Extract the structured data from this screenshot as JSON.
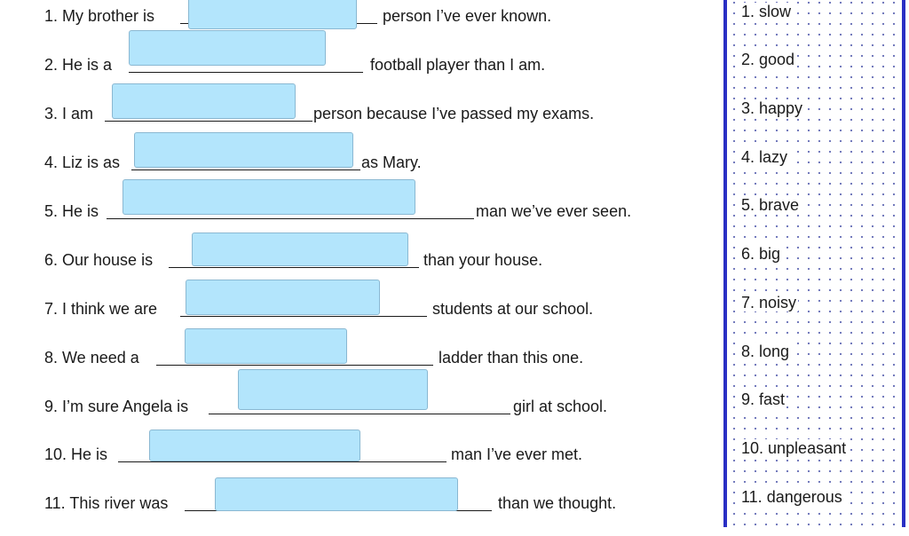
{
  "exercise": [
    {
      "pre": "1. My brother is",
      "post": "person I’ve ever known."
    },
    {
      "pre": "2. He is a",
      "post": "football player than I am."
    },
    {
      "pre": "3. I am",
      "post": "person because I’ve passed my exams."
    },
    {
      "pre": "4. Liz is as",
      "post": "as Mary."
    },
    {
      "pre": "5. He is",
      "post": "man we’ve ever seen."
    },
    {
      "pre": "6. Our house is",
      "post": "than your house."
    },
    {
      "pre": "7. I think we are",
      "post": "students at our school."
    },
    {
      "pre": "8. We need a",
      "post": "ladder than this one."
    },
    {
      "pre": "9. I’m sure Angela is",
      "post": "girl at school."
    },
    {
      "pre": "10. He is",
      "post": "man I’ve ever met."
    },
    {
      "pre": "11. This river was",
      "post": "than we thought."
    }
  ],
  "word_bank": [
    "1. slow",
    "2. good",
    "3. happy",
    "4. lazy",
    "5. brave",
    "6. big",
    "7. noisy",
    "8. long",
    "9. fast",
    "10. unpleasant",
    "11. dangerous"
  ],
  "colors": {
    "answer_box": "#b3e5fc",
    "panel_border": "#2a2fc4",
    "panel_dots": "#6d74b8"
  }
}
